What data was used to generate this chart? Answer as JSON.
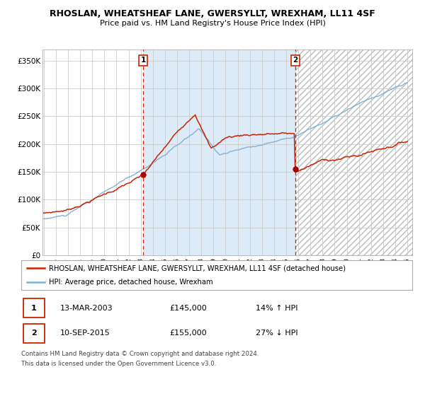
{
  "title": "RHOSLAN, WHEATSHEAF LANE, GWERSYLLT, WREXHAM, LL11 4SF",
  "subtitle": "Price paid vs. HM Land Registry's House Price Index (HPI)",
  "legend_line1": "RHOSLAN, WHEATSHEAF LANE, GWERSYLLT, WREXHAM, LL11 4SF (detached house)",
  "legend_line2": "HPI: Average price, detached house, Wrexham",
  "transaction1_date": "13-MAR-2003",
  "transaction1_price": 145000,
  "transaction1_hpi": "14% ↑ HPI",
  "transaction2_date": "10-SEP-2015",
  "transaction2_price": 155000,
  "transaction2_hpi": "27% ↓ HPI",
  "footnote1": "Contains HM Land Registry data © Crown copyright and database right 2024.",
  "footnote2": "This data is licensed under the Open Government Licence v3.0.",
  "hpi_line_color": "#7bafd4",
  "price_color": "#cc2200",
  "dot_color": "#aa0000",
  "vline_color": "#cc2200",
  "bg_color": "#ddeaf7",
  "outer_bg": "#f0f4fa",
  "grid_color": "#cccccc",
  "ylim": [
    0,
    370000
  ],
  "yticks": [
    0,
    50000,
    100000,
    150000,
    200000,
    250000,
    300000,
    350000
  ],
  "ytick_labels": [
    "£0",
    "£50K",
    "£100K",
    "£150K",
    "£200K",
    "£250K",
    "£300K",
    "£350K"
  ],
  "x_start_year": 1995,
  "x_end_year": 2025,
  "transaction1_x": 2003.2,
  "transaction2_x": 2015.75
}
